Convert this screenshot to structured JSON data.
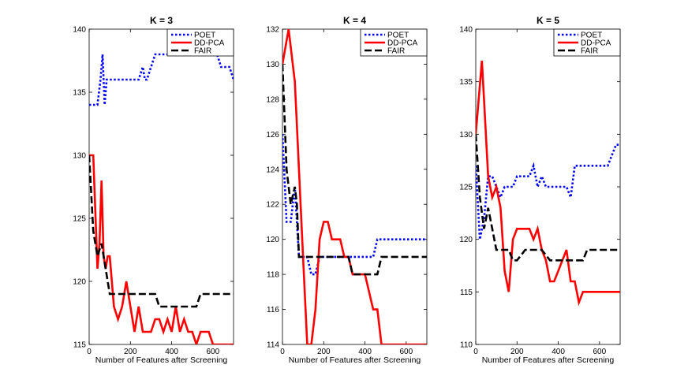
{
  "chart_data": [
    {
      "type": "line",
      "title": "K = 3",
      "xlabel": "Number of Features after Screening",
      "ylabel": "",
      "xlim": [
        0,
        700
      ],
      "ylim": [
        115,
        140
      ],
      "xticks": [
        0,
        200,
        400,
        600
      ],
      "yticks": [
        115,
        120,
        125,
        130,
        135,
        140
      ],
      "xticklabels": [
        "0",
        "200",
        "400",
        "600"
      ],
      "yticklabels": [
        "115",
        "120",
        "125",
        "130",
        "135",
        "140"
      ],
      "legend_position": "top-right",
      "series": [
        {
          "name": "POET",
          "color": "#0000ff",
          "dash": "dotted",
          "x": [
            0,
            20,
            40,
            55,
            65,
            75,
            85,
            95,
            110,
            140,
            180,
            200,
            240,
            260,
            270,
            280,
            300,
            320,
            340,
            360,
            380,
            400,
            420,
            440,
            460,
            480,
            500,
            520,
            540,
            560,
            580,
            600,
            620,
            640,
            660,
            680,
            700
          ],
          "y": [
            134,
            134,
            134,
            136,
            138,
            134,
            136,
            136,
            136,
            136,
            136,
            136,
            136,
            137,
            136,
            136,
            137,
            138,
            138,
            138,
            138,
            138,
            138,
            138,
            138,
            138,
            138,
            138,
            138,
            138,
            138,
            138,
            138,
            137,
            137,
            137,
            136
          ]
        },
        {
          "name": "DD-PCA",
          "color": "#ff0000",
          "dash": "solid",
          "x": [
            0,
            20,
            40,
            50,
            60,
            70,
            80,
            90,
            100,
            120,
            140,
            160,
            180,
            200,
            220,
            240,
            260,
            280,
            300,
            320,
            340,
            360,
            380,
            400,
            420,
            440,
            460,
            480,
            500,
            520,
            540,
            560,
            580,
            600,
            620,
            640,
            660,
            680,
            700
          ],
          "y": [
            130,
            130,
            121,
            123,
            128,
            122,
            121,
            122,
            122,
            118,
            117,
            118,
            120,
            118,
            116,
            118,
            116,
            116,
            116,
            117,
            117,
            116,
            117,
            116,
            118,
            116,
            117,
            116,
            116,
            115,
            116,
            116,
            116,
            115,
            115,
            115,
            115,
            115,
            115
          ]
        },
        {
          "name": "FAIR",
          "color": "#000000",
          "dash": "dashed",
          "x": [
            0,
            20,
            40,
            60,
            80,
            100,
            120,
            140,
            160,
            180,
            200,
            220,
            240,
            260,
            280,
            300,
            320,
            340,
            360,
            380,
            400,
            420,
            440,
            460,
            480,
            500,
            520,
            540,
            560,
            580,
            600,
            620,
            640,
            660,
            680,
            700
          ],
          "y": [
            130,
            124,
            122,
            123,
            121,
            119,
            119,
            119,
            119,
            119,
            119,
            119,
            119,
            119,
            119,
            119,
            119,
            118,
            118,
            118,
            118,
            118,
            118,
            118,
            118,
            118,
            118,
            119,
            119,
            119,
            119,
            119,
            119,
            119,
            119,
            119
          ]
        }
      ]
    },
    {
      "type": "line",
      "title": "K = 4",
      "xlabel": "Number of Features after Screening",
      "ylabel": "",
      "xlim": [
        0,
        700
      ],
      "ylim": [
        114,
        132
      ],
      "xticks": [
        0,
        200,
        400,
        600
      ],
      "yticks": [
        114,
        116,
        118,
        120,
        122,
        124,
        126,
        128,
        130,
        132
      ],
      "xticklabels": [
        "0",
        "200",
        "400",
        "600"
      ],
      "yticklabels": [
        "114",
        "116",
        "118",
        "120",
        "122",
        "124",
        "126",
        "128",
        "130",
        "132"
      ],
      "legend_position": "top-right",
      "series": [
        {
          "name": "POET",
          "color": "#0000ff",
          "dash": "dotted",
          "x": [
            0,
            20,
            40,
            60,
            70,
            80,
            100,
            120,
            140,
            160,
            180,
            200,
            240,
            280,
            320,
            360,
            400,
            440,
            460,
            480,
            500,
            540,
            580,
            620,
            660,
            700
          ],
          "y": [
            126,
            121,
            121,
            123,
            121,
            119,
            119,
            119,
            118,
            118,
            119,
            119,
            119,
            119,
            119,
            119,
            119,
            119,
            120,
            120,
            120,
            120,
            120,
            120,
            120,
            120
          ]
        },
        {
          "name": "DD-PCA",
          "color": "#ff0000",
          "dash": "solid",
          "x": [
            0,
            30,
            60,
            80,
            100,
            120,
            140,
            160,
            180,
            200,
            220,
            240,
            260,
            280,
            300,
            320,
            340,
            360,
            400,
            440,
            460,
            480,
            500,
            540,
            580,
            620,
            660,
            700
          ],
          "y": [
            130,
            132,
            129,
            124,
            119,
            114,
            114,
            116,
            120,
            121,
            121,
            120,
            120,
            120,
            119,
            119,
            118,
            118,
            118,
            116,
            116,
            114,
            114,
            114,
            114,
            114,
            114,
            114
          ]
        },
        {
          "name": "FAIR",
          "color": "#000000",
          "dash": "dashed",
          "x": [
            0,
            20,
            40,
            60,
            70,
            80,
            100,
            120,
            140,
            160,
            180,
            200,
            240,
            280,
            320,
            340,
            360,
            400,
            440,
            460,
            480,
            500,
            540,
            580,
            620,
            660,
            700
          ],
          "y": [
            130,
            124,
            122,
            123,
            122,
            119,
            119,
            119,
            119,
            119,
            119,
            119,
            119,
            119,
            119,
            118,
            118,
            118,
            118,
            118,
            119,
            119,
            119,
            119,
            119,
            119,
            119
          ]
        }
      ]
    },
    {
      "type": "line",
      "title": "K = 5",
      "xlabel": "Number of Features after Screening",
      "ylabel": "",
      "xlim": [
        0,
        700
      ],
      "ylim": [
        110,
        140
      ],
      "xticks": [
        0,
        200,
        400,
        600
      ],
      "yticks": [
        110,
        115,
        120,
        125,
        130,
        135,
        140
      ],
      "xticklabels": [
        "0",
        "200",
        "400",
        "600"
      ],
      "yticklabels": [
        "110",
        "115",
        "120",
        "125",
        "130",
        "135",
        "140"
      ],
      "legend_position": "top-right",
      "series": [
        {
          "name": "POET",
          "color": "#0000ff",
          "dash": "dotted",
          "x": [
            0,
            20,
            40,
            60,
            80,
            100,
            120,
            140,
            160,
            180,
            200,
            220,
            240,
            260,
            280,
            290,
            300,
            320,
            340,
            360,
            380,
            400,
            420,
            440,
            460,
            480,
            500,
            540,
            580,
            620,
            640,
            660,
            680,
            700
          ],
          "y": [
            127,
            120,
            122,
            126,
            126,
            125,
            124,
            125,
            125,
            125,
            126,
            126,
            126,
            126,
            127,
            126,
            125,
            126,
            125,
            125,
            125,
            125,
            125,
            125,
            124,
            127,
            127,
            127,
            127,
            127,
            127,
            128,
            129,
            129
          ]
        },
        {
          "name": "DD-PCA",
          "color": "#ff0000",
          "dash": "solid",
          "x": [
            0,
            30,
            60,
            80,
            100,
            120,
            140,
            160,
            180,
            200,
            240,
            260,
            280,
            300,
            320,
            340,
            360,
            380,
            400,
            420,
            440,
            460,
            480,
            500,
            520,
            540,
            580,
            620,
            660,
            700
          ],
          "y": [
            130,
            137,
            126,
            124,
            125,
            123,
            117,
            115,
            120,
            121,
            121,
            121,
            120,
            121,
            119,
            118,
            116,
            116,
            117,
            118,
            119,
            116,
            116,
            114,
            115,
            115,
            115,
            115,
            115,
            115
          ]
        },
        {
          "name": "FAIR",
          "color": "#000000",
          "dash": "dashed",
          "x": [
            0,
            20,
            40,
            60,
            80,
            100,
            120,
            140,
            160,
            180,
            200,
            240,
            280,
            320,
            360,
            400,
            440,
            480,
            500,
            520,
            540,
            580,
            620,
            660,
            700
          ],
          "y": [
            130,
            124,
            121,
            123,
            121,
            119,
            119,
            119,
            119,
            118,
            118,
            119,
            119,
            119,
            118,
            118,
            118,
            118,
            118,
            118,
            119,
            119,
            119,
            119,
            119
          ]
        }
      ]
    }
  ]
}
